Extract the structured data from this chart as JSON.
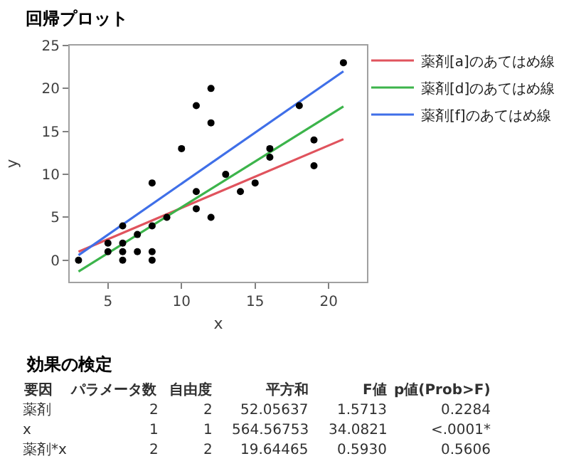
{
  "chart_data": {
    "type": "scatter",
    "title": "回帰プロット",
    "xlabel": "x",
    "ylabel": "y",
    "xlim": [
      2.4,
      22.6
    ],
    "ylim": [
      -2.5,
      25
    ],
    "xticks": [
      5,
      10,
      15,
      20
    ],
    "yticks": [
      0,
      5,
      10,
      15,
      20,
      25
    ],
    "legend": "top right",
    "marker": "circle",
    "series": [
      {
        "color": "#000000",
        "x": [
          3,
          5,
          5,
          6,
          6,
          6,
          6,
          7,
          7,
          8,
          8,
          8,
          8,
          9,
          10,
          11,
          11,
          11,
          12,
          12,
          12,
          13,
          14,
          15,
          16,
          16,
          18,
          19,
          19,
          21
        ],
        "values": [
          0,
          2,
          1,
          4,
          2,
          1,
          0,
          3,
          1,
          9,
          4,
          1,
          0,
          5,
          13,
          18,
          8,
          6,
          20,
          16,
          5,
          10,
          8,
          9,
          13,
          12,
          18,
          14,
          11,
          23
        ]
      },
      {
        "type": "line",
        "name": "薬剤[a]のあてはめ線",
        "color": "#e0535d",
        "line_style": "solid",
        "marker": "none",
        "x": [
          3,
          21
        ],
        "values": [
          1.0,
          14.1
        ]
      },
      {
        "type": "line",
        "name": "薬剤[d]のあてはめ線",
        "color": "#3cb44b",
        "line_style": "solid",
        "marker": "none",
        "x": [
          3,
          21
        ],
        "values": [
          -1.3,
          17.9
        ]
      },
      {
        "type": "line",
        "name": "薬剤[f]のあてはめ線",
        "color": "#3f6fe8",
        "line_style": "solid",
        "marker": "none",
        "x": [
          3,
          21
        ],
        "values": [
          0.6,
          22.0
        ]
      }
    ],
    "annotations": [
      "効果の検定",
      "要因",
      "パラメータ数",
      "自由度",
      "平方和",
      "F値",
      "p値(Prob>F)",
      "薬剤",
      "2",
      "2",
      "52.05637",
      "1.5713",
      "0.2284",
      "x",
      "1",
      "1",
      "564.56753",
      "34.0821",
      "<.0001*",
      "薬剤*x",
      "2",
      "2",
      "19.64465",
      "0.5930",
      "0.5606"
    ]
  }
}
